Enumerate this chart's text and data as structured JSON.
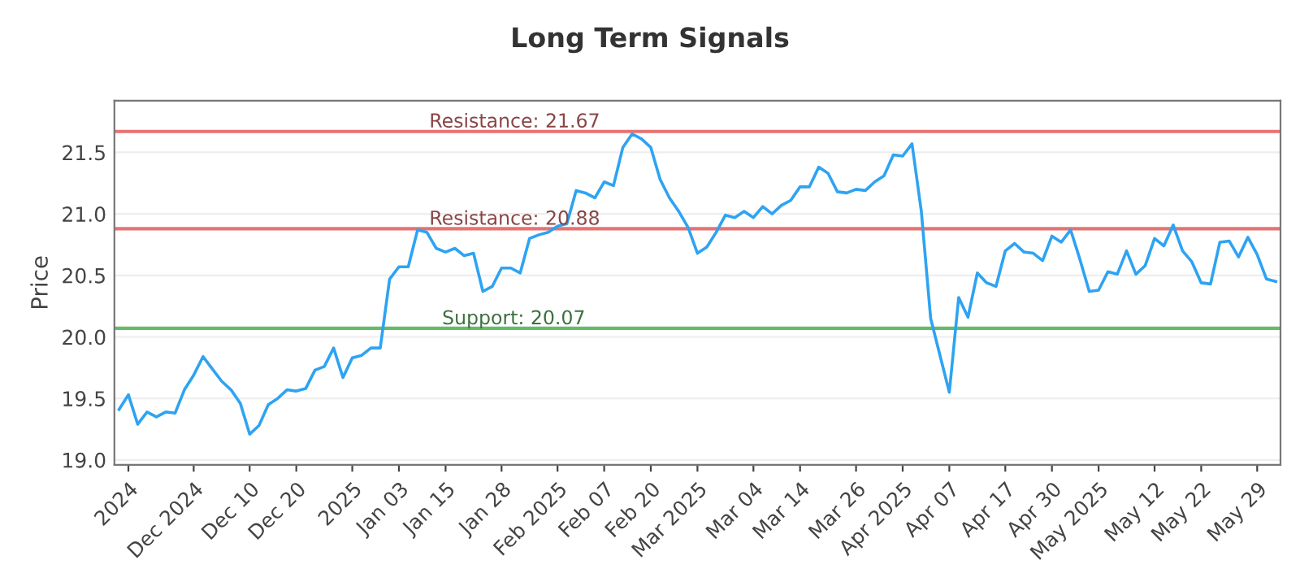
{
  "chart_data": {
    "type": "line",
    "title": "Long Term Signals",
    "ylabel": "Price",
    "categories": [
      null,
      "2024",
      null,
      null,
      null,
      null,
      null,
      null,
      "Dec 2024",
      null,
      null,
      null,
      null,
      null,
      "Dec 10",
      null,
      null,
      null,
      null,
      "Dec 20",
      null,
      null,
      null,
      null,
      null,
      "2025",
      null,
      null,
      null,
      null,
      "Jan 03",
      null,
      null,
      null,
      null,
      "Jan 15",
      null,
      null,
      null,
      null,
      null,
      "Jan 28",
      null,
      null,
      null,
      null,
      null,
      "Feb 2025",
      null,
      null,
      null,
      null,
      "Feb 07",
      null,
      null,
      null,
      null,
      "Feb 20",
      null,
      null,
      null,
      null,
      "Mar 2025",
      null,
      null,
      null,
      null,
      null,
      "Mar 04",
      null,
      null,
      null,
      null,
      "Mar 14",
      null,
      null,
      null,
      null,
      null,
      "Mar 26",
      null,
      null,
      null,
      null,
      "Apr 2025",
      null,
      null,
      null,
      null,
      "Apr 07",
      null,
      null,
      null,
      null,
      null,
      "Apr 17",
      null,
      null,
      null,
      null,
      "Apr 30",
      null,
      null,
      null,
      null,
      "May 2025",
      null,
      null,
      null,
      null,
      null,
      "May 12",
      null,
      null,
      null,
      null,
      "May 22",
      null,
      null,
      null,
      null,
      null,
      "May 29",
      null,
      null
    ],
    "series": [
      {
        "color": "#2ea3f2",
        "values": [
          19.41,
          19.53,
          19.29,
          19.39,
          19.35,
          19.39,
          19.38,
          19.57,
          19.69,
          19.84,
          19.74,
          19.64,
          19.57,
          19.46,
          19.21,
          19.28,
          19.45,
          19.5,
          19.57,
          19.56,
          19.58,
          19.73,
          19.76,
          19.91,
          19.67,
          19.83,
          19.85,
          19.91,
          19.91,
          20.47,
          20.57,
          20.57,
          20.87,
          20.85,
          20.72,
          20.69,
          20.72,
          20.66,
          20.68,
          20.37,
          20.41,
          20.56,
          20.56,
          20.52,
          20.8,
          20.83,
          20.85,
          20.9,
          20.92,
          21.19,
          21.17,
          21.13,
          21.26,
          21.23,
          21.54,
          21.65,
          21.61,
          21.54,
          21.28,
          21.13,
          21.02,
          20.89,
          20.68,
          20.73,
          20.85,
          20.99,
          20.97,
          21.02,
          20.97,
          21.06,
          21.0,
          21.07,
          21.11,
          21.22,
          21.22,
          21.38,
          21.33,
          21.18,
          21.17,
          21.2,
          21.19,
          21.26,
          21.31,
          21.48,
          21.47,
          21.57,
          21.02,
          20.15,
          19.85,
          19.55,
          20.32,
          20.16,
          20.52,
          20.44,
          20.41,
          20.7,
          20.76,
          20.69,
          20.68,
          20.62,
          20.82,
          20.77,
          20.87,
          20.63,
          20.37,
          20.38,
          20.53,
          20.51,
          20.7,
          20.51,
          20.58,
          20.8,
          20.74,
          20.91,
          20.7,
          20.61,
          20.44,
          20.43,
          20.77,
          20.78,
          20.65,
          20.81,
          20.67,
          20.47,
          20.45
        ]
      }
    ],
    "ylim": [
      18.96,
      21.92
    ],
    "yticks": [
      {
        "value": 19.0,
        "label": "19.0"
      },
      {
        "value": 19.5,
        "label": "19.5"
      },
      {
        "value": 20.0,
        "label": "20.0"
      },
      {
        "value": 20.5,
        "label": "20.5"
      },
      {
        "value": 21.0,
        "label": "21.0"
      },
      {
        "value": 21.5,
        "label": "21.5"
      }
    ],
    "ref_lines": [
      {
        "axis": "y",
        "value": 21.67,
        "label": "Resistance: 21.67",
        "color": "#e57373"
      },
      {
        "axis": "y",
        "value": 20.88,
        "label": "Resistance: 20.88",
        "color": "#e57373"
      },
      {
        "axis": "y",
        "value": 20.07,
        "label": "Support: 20.07",
        "color": "#66bb6a"
      }
    ],
    "grid": "y",
    "marker": "none",
    "line_style": "solid"
  }
}
